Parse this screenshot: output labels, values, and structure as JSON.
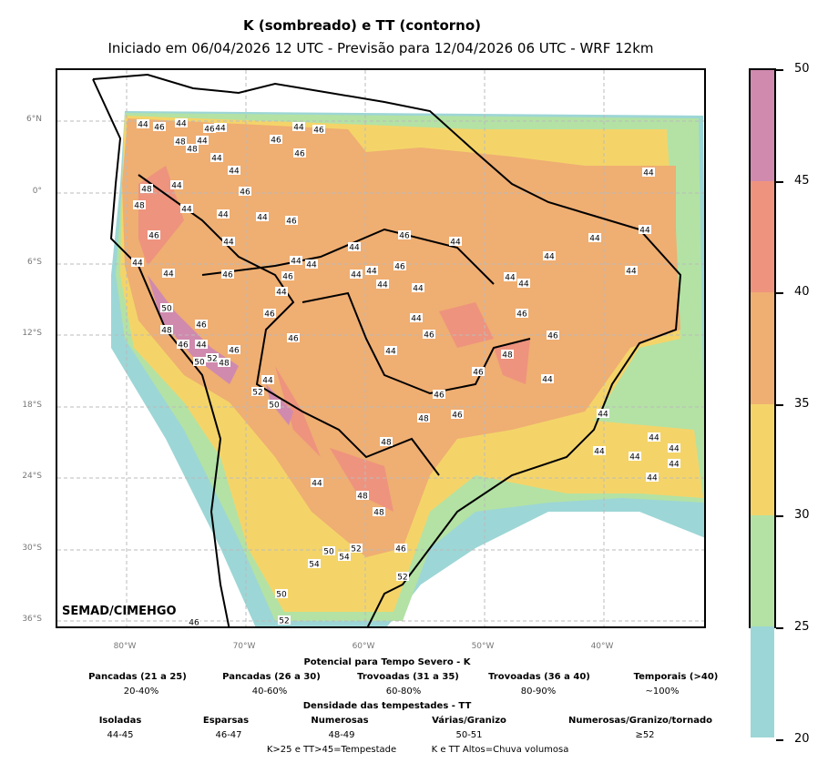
{
  "title": "K (sombreado) e TT (contorno)",
  "subtitle": "Iniciado em 06/04/2026 12 UTC - Previsão para 12/04/2026 06 UTC - WRF 12km",
  "credit": "SEMAD/CIMEHGO",
  "lat_labels": [
    "6°N",
    "0°",
    "6°S",
    "12°S",
    "18°S",
    "24°S",
    "30°S",
    "36°S"
  ],
  "lon_labels": [
    "80°W",
    "70°W",
    "60°W",
    "50°W",
    "40°W"
  ],
  "colorbar": {
    "ticks": [
      "50",
      "45",
      "40",
      "35",
      "30",
      "25",
      "20"
    ],
    "colors": [
      "#d08aae",
      "#ee937e",
      "#efae72",
      "#f4d469",
      "#b3e2a4",
      "#9dd6d6"
    ]
  },
  "contour_labels": [
    "44",
    "46",
    "44",
    "46",
    "44",
    "48",
    "44",
    "48",
    "46",
    "44",
    "46",
    "46",
    "44",
    "44",
    "44",
    "48",
    "44",
    "46",
    "48",
    "44",
    "44",
    "44",
    "46",
    "44",
    "46",
    "44",
    "46",
    "44",
    "44",
    "44",
    "44",
    "44",
    "44",
    "46",
    "44",
    "44",
    "46",
    "44",
    "44",
    "46",
    "44",
    "44",
    "44",
    "44",
    "44",
    "44",
    "50",
    "46",
    "46",
    "48",
    "46",
    "44",
    "46",
    "46",
    "46",
    "46",
    "44",
    "46",
    "44",
    "50",
    "52",
    "48",
    "48",
    "46",
    "44",
    "44",
    "52",
    "50",
    "46",
    "44",
    "46",
    "48",
    "48",
    "44",
    "44",
    "44",
    "44",
    "44",
    "44",
    "44",
    "48",
    "48",
    "52",
    "50",
    "54",
    "46",
    "54",
    "52",
    "50",
    "52",
    "46"
  ],
  "legend": {
    "k_title": "Potencial para Tempo Severo - K",
    "k_items": [
      {
        "label": "Pancadas (21 a 25)",
        "value": "20-40%"
      },
      {
        "label": "Pancadas (26 a 30)",
        "value": "40-60%"
      },
      {
        "label": "Trovoadas (31 a 35)",
        "value": "60-80%"
      },
      {
        "label": "Trovoadas (36 a 40)",
        "value": "80-90%"
      },
      {
        "label": "Temporais (>40)",
        "value": "~100%"
      }
    ],
    "tt_title": "Densidade das tempestades - TT",
    "tt_items": [
      {
        "label": "Isoladas",
        "value": "44-45"
      },
      {
        "label": "Esparsas",
        "value": "46-47"
      },
      {
        "label": "Numerosas",
        "value": "48-49"
      },
      {
        "label": "Várias/Granizo",
        "value": "50-51"
      },
      {
        "label": "Numerosas/Granizo/tornado",
        "value": "≥52"
      }
    ],
    "note1": "K>25 e TT>45=Tempestade",
    "note2": "K e TT Altos=Chuva volumosa"
  }
}
